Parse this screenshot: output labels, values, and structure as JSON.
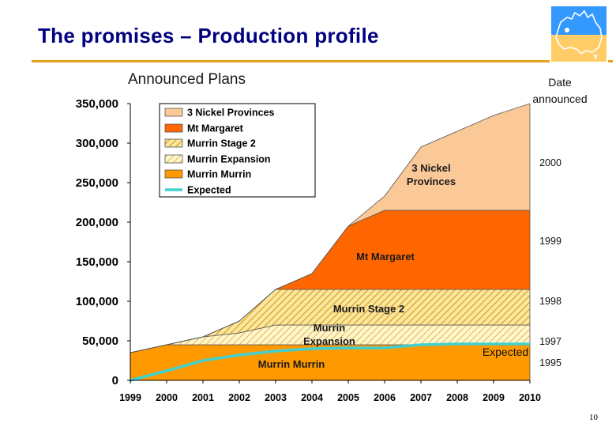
{
  "slide": {
    "title": "The promises – Production profile",
    "page_number": "10",
    "logo_icon": "australia-map-icon"
  },
  "chart_data": {
    "type": "area",
    "title": "Announced Plans",
    "xlabel": "",
    "ylabel": "",
    "x": [
      1999,
      2000,
      2001,
      2002,
      2003,
      2004,
      2005,
      2006,
      2007,
      2008,
      2009,
      2010
    ],
    "ylim": [
      0,
      350000
    ],
    "y_ticks": [
      "0",
      "50,000",
      "100,000",
      "150,000",
      "200,000",
      "250,000",
      "300,000",
      "350,000"
    ],
    "x_ticks": [
      "1999",
      "2000",
      "2001",
      "2002",
      "2003",
      "2004",
      "2005",
      "2006",
      "2007",
      "2008",
      "2009",
      "2010"
    ],
    "stacked": true,
    "grid": false,
    "legend_position": "top-left",
    "series": [
      {
        "name": "Murrin Murrin",
        "color": "#ff9900",
        "pattern": "solid",
        "values": [
          35000,
          45000,
          45000,
          45000,
          45000,
          45000,
          45000,
          45000,
          45000,
          45000,
          45000,
          45000
        ]
      },
      {
        "name": "Murrin Expansion",
        "color": "#f5e6a8",
        "pattern": "hatched",
        "values": [
          0,
          0,
          10000,
          15000,
          25000,
          25000,
          25000,
          25000,
          25000,
          25000,
          25000,
          25000
        ]
      },
      {
        "name": "Murrin Stage 2",
        "color": "#f0c850",
        "pattern": "hatched",
        "values": [
          0,
          0,
          0,
          15000,
          45000,
          45000,
          45000,
          45000,
          45000,
          45000,
          45000,
          45000
        ]
      },
      {
        "name": "Mt Margaret",
        "color": "#ff6600",
        "pattern": "solid",
        "values": [
          0,
          0,
          0,
          0,
          0,
          20000,
          80000,
          100000,
          100000,
          100000,
          100000,
          100000
        ]
      },
      {
        "name": "3 Nickel Provinces",
        "color": "#fbc898",
        "pattern": "solid",
        "values": [
          0,
          0,
          0,
          0,
          0,
          0,
          0,
          18000,
          80000,
          100000,
          120000,
          135000
        ]
      }
    ],
    "expected": {
      "name": "Expected",
      "color": "#40d0d0",
      "values": [
        0,
        12000,
        25000,
        32000,
        37000,
        40000,
        41000,
        41000,
        45000,
        46000,
        46000,
        46000
      ]
    },
    "annotations": [
      {
        "text": "3 Nickel\nProvinces",
        "series": "3 Nickel Provinces"
      },
      {
        "text": "Mt Margaret",
        "series": "Mt Margaret"
      },
      {
        "text": "Murrin Stage 2",
        "series": "Murrin Stage 2"
      },
      {
        "text": "Murrin\nExpansion",
        "series": "Murrin Expansion"
      },
      {
        "text": "Murrin Murrin",
        "series": "Murrin Murrin"
      },
      {
        "text": "Expected",
        "series": "Expected"
      }
    ],
    "date_announced": {
      "header": "Date announced",
      "labels": [
        {
          "year": "2000",
          "series": "3 Nickel Provinces"
        },
        {
          "year": "1999",
          "series": "Mt Margaret"
        },
        {
          "year": "1998",
          "series": "Murrin Stage 2"
        },
        {
          "year": "1997",
          "series": "Murrin Expansion"
        },
        {
          "year": "1995",
          "series": "Murrin Murrin"
        }
      ]
    }
  }
}
